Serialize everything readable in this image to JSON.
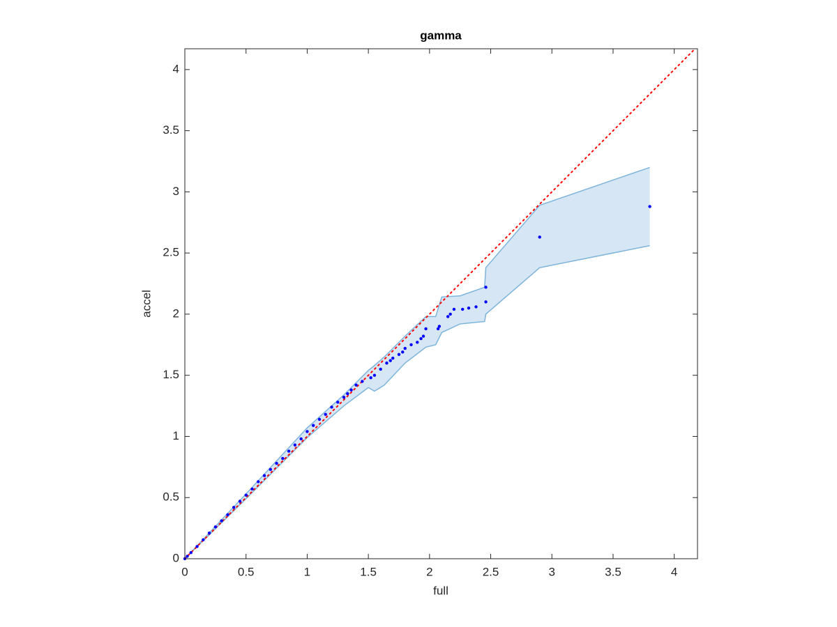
{
  "chart_data": {
    "type": "scatter",
    "title": "gamma",
    "x_label": "full",
    "y_label": "accel",
    "xlim": [
      0,
      4.19
    ],
    "ylim": [
      0,
      4.17
    ],
    "xticks": [
      0,
      0.5,
      1,
      1.5,
      2,
      2.5,
      3,
      3.5,
      4
    ],
    "yticks": [
      0,
      0.5,
      1,
      1.5,
      2,
      2.5,
      3,
      3.5,
      4
    ],
    "box": true,
    "points": {
      "color": "#0000ff",
      "x": [
        0,
        0.02,
        0.05,
        0.1,
        0.15,
        0.2,
        0.25,
        0.3,
        0.35,
        0.4,
        0.45,
        0.5,
        0.55,
        0.6,
        0.65,
        0.7,
        0.75,
        0.8,
        0.85,
        0.9,
        0.95,
        1.0,
        1.05,
        1.1,
        1.15,
        1.2,
        1.25,
        1.3,
        1.33,
        1.36,
        1.4,
        1.45,
        1.52,
        1.55,
        1.6,
        1.65,
        1.68,
        1.7,
        1.75,
        1.78,
        1.8,
        1.85,
        1.9,
        1.93,
        1.95,
        1.97,
        2.07,
        2.08,
        2.15,
        2.17,
        2.2,
        2.27,
        2.32,
        2.38,
        2.46,
        2.46,
        2.9,
        3.8
      ],
      "y": [
        0,
        0.02,
        0.05,
        0.1,
        0.155,
        0.21,
        0.26,
        0.31,
        0.36,
        0.42,
        0.47,
        0.52,
        0.57,
        0.63,
        0.68,
        0.73,
        0.78,
        0.82,
        0.88,
        0.93,
        0.98,
        1.04,
        1.09,
        1.14,
        1.18,
        1.24,
        1.28,
        1.32,
        1.35,
        1.38,
        1.42,
        1.45,
        1.48,
        1.5,
        1.55,
        1.6,
        1.62,
        1.64,
        1.67,
        1.69,
        1.72,
        1.75,
        1.77,
        1.8,
        1.82,
        1.88,
        1.88,
        1.9,
        1.98,
        2.0,
        2.04,
        2.04,
        2.05,
        2.06,
        2.1,
        2.22,
        2.63,
        2.88
      ]
    },
    "band": {
      "color": "#7db4db",
      "fill": "#d6e6f4",
      "x": [
        0,
        0.5,
        1.0,
        1.3,
        1.5,
        1.55,
        1.63,
        1.8,
        1.97,
        2.05,
        2.1,
        2.25,
        2.45,
        2.46,
        2.9,
        3.8
      ],
      "upper": [
        0,
        0.53,
        1.07,
        1.34,
        1.54,
        1.58,
        1.65,
        1.82,
        1.98,
        1.98,
        2.14,
        2.15,
        2.22,
        2.38,
        2.89,
        3.2
      ],
      "lower": [
        0,
        0.49,
        0.99,
        1.25,
        1.4,
        1.37,
        1.42,
        1.6,
        1.73,
        1.75,
        1.85,
        1.92,
        1.94,
        2.0,
        2.38,
        2.56
      ]
    },
    "reference_line": {
      "slope": 1,
      "intercept": 0,
      "color": "#ff0000"
    }
  }
}
